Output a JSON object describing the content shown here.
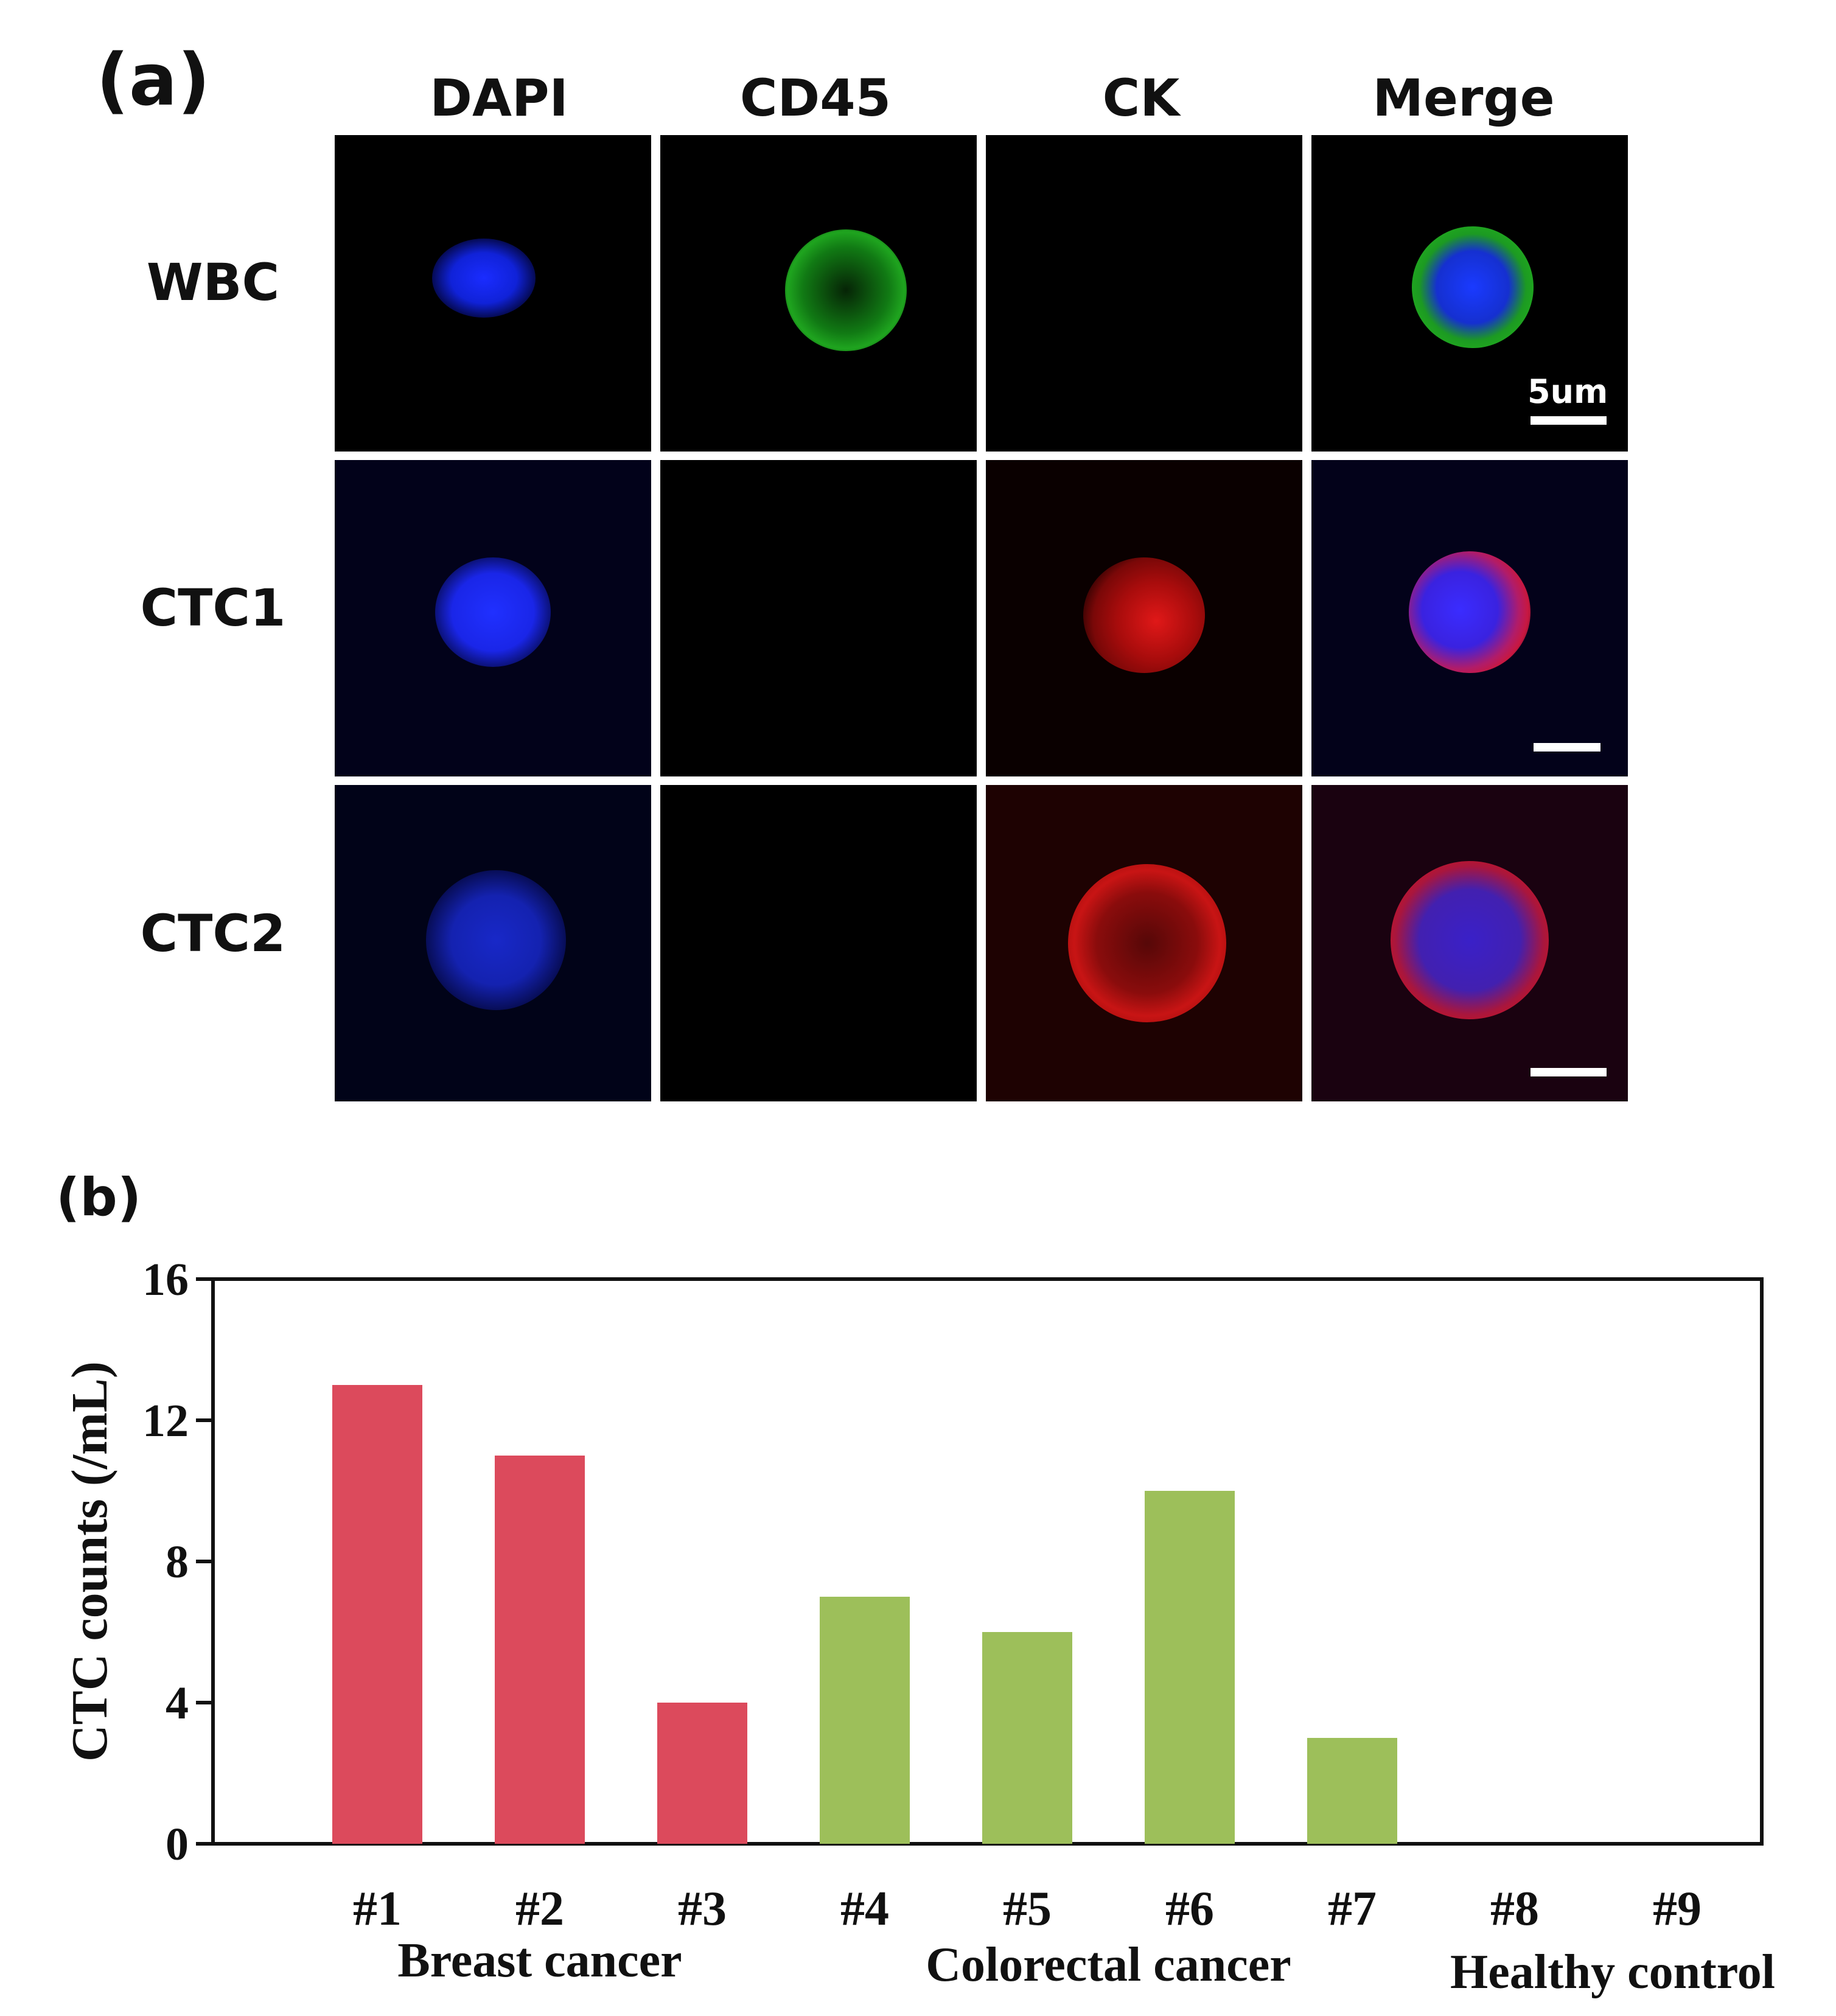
{
  "panel_a": {
    "label": "(a)",
    "columns": [
      "DAPI",
      "CD45",
      "CK",
      "Merge"
    ],
    "rows": [
      "WBC",
      "CTC1",
      "CTC2"
    ],
    "scale_label": "5um"
  },
  "panel_b": {
    "label": "(b)"
  },
  "chart_data": {
    "type": "bar",
    "categories": [
      "#1",
      "#2",
      "#3",
      "#4",
      "#5",
      "#6",
      "#7",
      "#8",
      "#9"
    ],
    "values": [
      13,
      11,
      4,
      7,
      6,
      10,
      3,
      0,
      0
    ],
    "groups": [
      {
        "name": "Breast cancer",
        "categories": [
          "#1",
          "#2",
          "#3"
        ],
        "color": "#dc4a5c"
      },
      {
        "name": "Colorectal cancer",
        "categories": [
          "#4",
          "#5",
          "#6",
          "#7"
        ],
        "color": "#9dbf5a"
      },
      {
        "name": "Healthy control",
        "categories": [
          "#8",
          "#9"
        ],
        "color": "#9dbf5a"
      }
    ],
    "colors": [
      "#dc4a5c",
      "#dc4a5c",
      "#dc4a5c",
      "#9dbf5a",
      "#9dbf5a",
      "#9dbf5a",
      "#9dbf5a",
      "#9dbf5a",
      "#9dbf5a"
    ],
    "ylabel": "CTC counts (/mL)",
    "xlabel": "",
    "ylim": [
      0,
      16
    ],
    "yticks": [
      "0",
      "4",
      "8",
      "12",
      "16"
    ],
    "grid": false
  }
}
